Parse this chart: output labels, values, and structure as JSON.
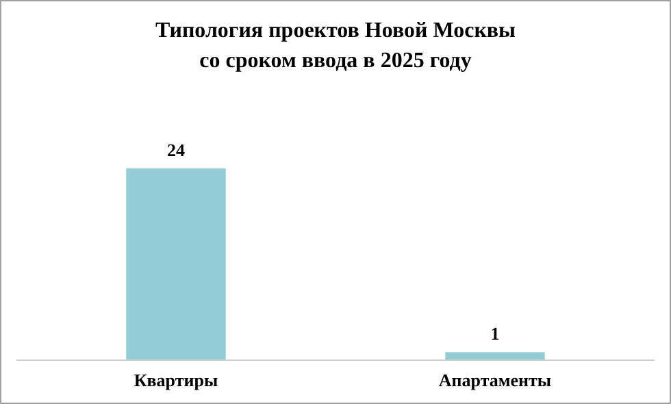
{
  "chart_data": {
    "type": "bar",
    "title": "Типология проектов Новой Москвы\nсо сроком ввода в 2025 году",
    "categories": [
      "Квартиры",
      "Апартаменты"
    ],
    "values": [
      24,
      1
    ],
    "color": "#92cdd5",
    "data_labels": true
  }
}
